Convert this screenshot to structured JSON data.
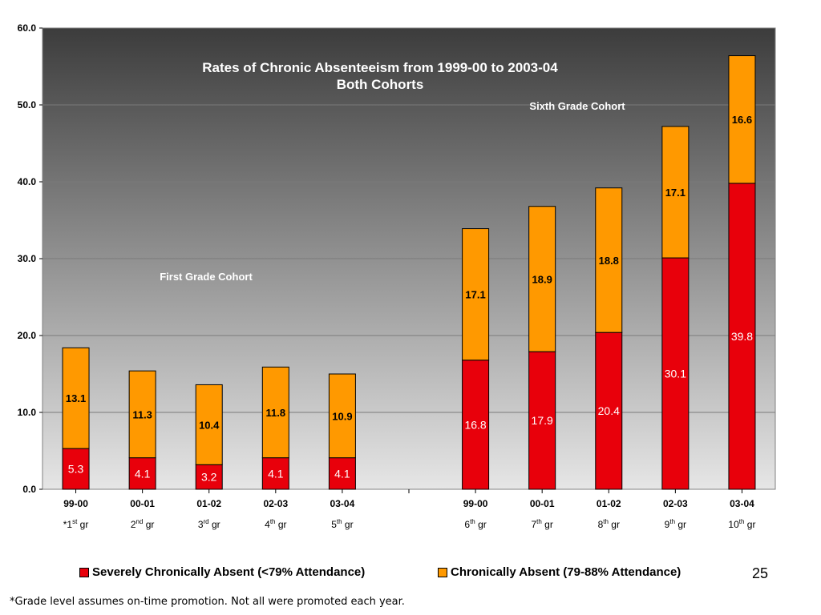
{
  "chart_data": {
    "type": "bar",
    "stacked": true,
    "title": "Rates of Chronic Absenteeism from 1999-00 to 2003-04",
    "subtitle": "Both Cohorts",
    "ylim": [
      0,
      60
    ],
    "yticks": [
      "0.0",
      "10.0",
      "20.0",
      "30.0",
      "40.0",
      "50.0",
      "60.0"
    ],
    "grid": true,
    "legend_placement": "bottom",
    "categories": [
      {
        "year": "99-00",
        "grade_prefix": "*1",
        "grade_sup": "st",
        "grade_suffix": " gr"
      },
      {
        "year": "00-01",
        "grade_prefix": "2",
        "grade_sup": "nd",
        "grade_suffix": " gr"
      },
      {
        "year": "01-02",
        "grade_prefix": "3",
        "grade_sup": "rd",
        "grade_suffix": " gr"
      },
      {
        "year": "02-03",
        "grade_prefix": "4",
        "grade_sup": "th",
        "grade_suffix": " gr"
      },
      {
        "year": "03-04",
        "grade_prefix": "5",
        "grade_sup": "th",
        "grade_suffix": " gr"
      },
      {
        "year": "99-00",
        "grade_prefix": "6",
        "grade_sup": "th",
        "grade_suffix": " gr"
      },
      {
        "year": "00-01",
        "grade_prefix": "7",
        "grade_sup": "th",
        "grade_suffix": " gr"
      },
      {
        "year": "01-02",
        "grade_prefix": "8",
        "grade_sup": "th",
        "grade_suffix": " gr"
      },
      {
        "year": "02-03",
        "grade_prefix": "9",
        "grade_sup": "th",
        "grade_suffix": " gr"
      },
      {
        "year": "03-04",
        "grade_prefix": "10",
        "grade_sup": "th",
        "grade_suffix": " gr"
      }
    ],
    "series": [
      {
        "name": "Severely Chronically Absent (<79% Attendance)",
        "color": "#e8000b",
        "values": [
          5.3,
          4.1,
          3.2,
          4.1,
          4.1,
          16.8,
          17.9,
          20.4,
          30.1,
          39.8
        ],
        "labels": [
          "5.3",
          "4.1",
          "3.2",
          "4.1",
          "4.1",
          "16.8",
          "17.9",
          "20.4",
          "30.1",
          "39.8"
        ]
      },
      {
        "name": "Chronically Absent (79-88% Attendance)",
        "color": "#ff9900",
        "values": [
          13.1,
          11.3,
          10.4,
          11.8,
          10.9,
          17.1,
          18.9,
          18.8,
          17.1,
          16.6
        ],
        "labels": [
          "13.1",
          "11.3",
          "10.4",
          "11.8",
          "10.9",
          "17.1",
          "18.9",
          "18.8",
          "17.1",
          "16.6"
        ]
      }
    ],
    "annotations": [
      "First Grade Cohort",
      "Sixth Grade Cohort"
    ],
    "colors": {
      "plot_top": "#3c3c3c",
      "plot_bottom": "#e6e6e6",
      "gridline": "#7a7a7a"
    }
  },
  "page_number": "25",
  "footnote": "*Grade level assumes on-time promotion. Not all were promoted each year."
}
